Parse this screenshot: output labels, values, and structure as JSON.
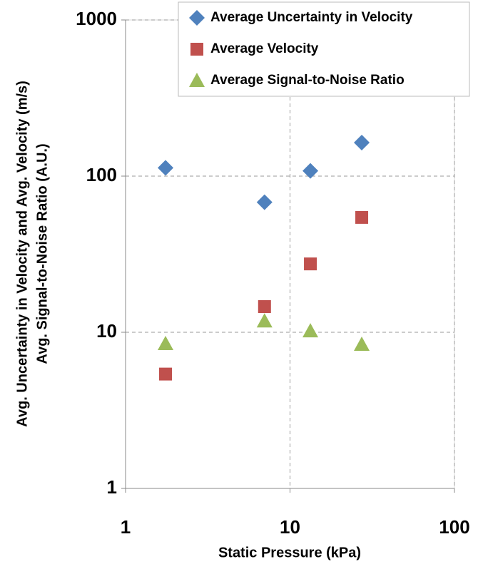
{
  "chart_data": {
    "type": "scatter",
    "xlabel": "Static Pressure (kPa)",
    "ylabel": [
      "Avg. Uncertainty in Velocity and Avg. Velocity  (m/s)",
      "Avg. Signal-to-Noise Ratio (A.U.)"
    ],
    "x": [
      1.75,
      7.0,
      13.3,
      27.3
    ],
    "series": [
      {
        "name": "Average Uncertainty in Velocity",
        "color": "#4f81bd",
        "marker": "diamond",
        "values": [
          113,
          68,
          108,
          164
        ]
      },
      {
        "name": "Average Velocity",
        "color": "#c0504d",
        "marker": "square",
        "values": [
          5.4,
          14.6,
          27.4,
          54.4
        ]
      },
      {
        "name": "Average Signal-to-Noise Ratio",
        "color": "#9bbb59",
        "marker": "triangle",
        "values": [
          8.45,
          11.8,
          10.2,
          8.36
        ]
      }
    ],
    "xlim": [
      1,
      100
    ],
    "xticks": [
      1,
      10,
      100
    ],
    "ylim": [
      1,
      1000
    ],
    "yticks": [
      1,
      10,
      100,
      1000
    ],
    "xlog": true,
    "ylog": true,
    "grid": true,
    "legend": "upper right"
  }
}
